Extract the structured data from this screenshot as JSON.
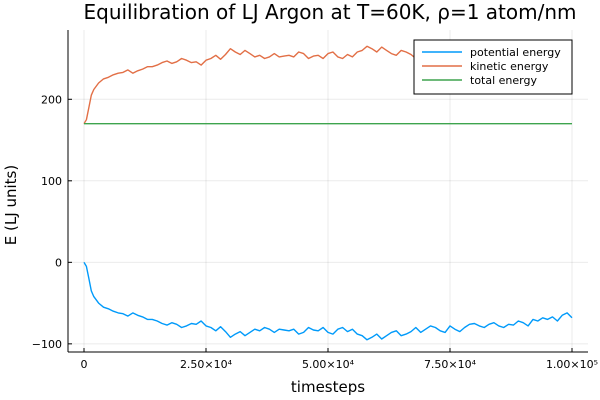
{
  "chart_data": {
    "type": "line",
    "title": "Equilibration of LJ Argon at T=60K, ρ=1 atom/nm",
    "xlabel": "timesteps",
    "ylabel": "E (LJ units)",
    "xlim": [
      0,
      100000
    ],
    "ylim": [
      -110,
      285
    ],
    "x_ticks": [
      {
        "value": 0,
        "label": "0"
      },
      {
        "value": 25000,
        "label": "2.50×10⁴"
      },
      {
        "value": 50000,
        "label": "5.00×10⁴"
      },
      {
        "value": 75000,
        "label": "7.50×10⁴"
      },
      {
        "value": 100000,
        "label": "1.00×10⁵"
      }
    ],
    "y_ticks": [
      {
        "value": -100,
        "label": "−100"
      },
      {
        "value": 0,
        "label": "0"
      },
      {
        "value": 100,
        "label": "100"
      },
      {
        "value": 200,
        "label": "200"
      }
    ],
    "grid": true,
    "legend_position": "top-right",
    "series": [
      {
        "name": "potential energy",
        "color": "#009AFA",
        "x": [
          0,
          500,
          1000,
          1500,
          2000,
          3000,
          4000,
          5000,
          6000,
          7000,
          8000,
          9000,
          10000,
          11000,
          12000,
          13000,
          14000,
          15000,
          16000,
          17000,
          18000,
          19000,
          20000,
          21000,
          22000,
          23000,
          24000,
          25000,
          26000,
          27000,
          28000,
          29000,
          30000,
          31000,
          32000,
          33000,
          34000,
          35000,
          36000,
          37000,
          38000,
          39000,
          40000,
          41000,
          42000,
          43000,
          44000,
          45000,
          46000,
          47000,
          48000,
          49000,
          50000,
          51000,
          52000,
          53000,
          54000,
          55000,
          56000,
          57000,
          58000,
          59000,
          60000,
          61000,
          62000,
          63000,
          64000,
          65000,
          66000,
          67000,
          68000,
          69000,
          70000,
          71000,
          72000,
          73000,
          74000,
          75000,
          76000,
          77000,
          78000,
          79000,
          80000,
          81000,
          82000,
          83000,
          84000,
          85000,
          86000,
          87000,
          88000,
          89000,
          90000,
          91000,
          92000,
          93000,
          94000,
          95000,
          96000,
          97000,
          98000,
          99000,
          100000
        ],
        "y": [
          0,
          -5,
          -20,
          -35,
          -42,
          -50,
          -55,
          -57,
          -60,
          -62,
          -63,
          -66,
          -62,
          -65,
          -67,
          -70,
          -70,
          -72,
          -75,
          -77,
          -74,
          -76,
          -80,
          -78,
          -75,
          -76,
          -72,
          -78,
          -80,
          -84,
          -79,
          -85,
          -92,
          -88,
          -85,
          -90,
          -86,
          -82,
          -84,
          -80,
          -82,
          -86,
          -82,
          -83,
          -84,
          -82,
          -88,
          -86,
          -80,
          -83,
          -84,
          -80,
          -86,
          -88,
          -82,
          -80,
          -85,
          -82,
          -88,
          -90,
          -95,
          -92,
          -88,
          -94,
          -90,
          -86,
          -84,
          -90,
          -88,
          -85,
          -80,
          -86,
          -82,
          -78,
          -80,
          -84,
          -86,
          -78,
          -82,
          -85,
          -80,
          -76,
          -75,
          -78,
          -80,
          -76,
          -74,
          -78,
          -80,
          -76,
          -77,
          -72,
          -74,
          -78,
          -70,
          -72,
          -68,
          -70,
          -67,
          -72,
          -65,
          -62,
          -68
        ]
      },
      {
        "name": "kinetic energy",
        "color": "#E26F46",
        "x": [
          0,
          500,
          1000,
          1500,
          2000,
          3000,
          4000,
          5000,
          6000,
          7000,
          8000,
          9000,
          10000,
          11000,
          12000,
          13000,
          14000,
          15000,
          16000,
          17000,
          18000,
          19000,
          20000,
          21000,
          22000,
          23000,
          24000,
          25000,
          26000,
          27000,
          28000,
          29000,
          30000,
          31000,
          32000,
          33000,
          34000,
          35000,
          36000,
          37000,
          38000,
          39000,
          40000,
          41000,
          42000,
          43000,
          44000,
          45000,
          46000,
          47000,
          48000,
          49000,
          50000,
          51000,
          52000,
          53000,
          54000,
          55000,
          56000,
          57000,
          58000,
          59000,
          60000,
          61000,
          62000,
          63000,
          64000,
          65000,
          66000,
          67000,
          68000,
          69000,
          70000,
          71000,
          72000,
          73000,
          74000,
          75000,
          76000,
          77000,
          78000,
          79000,
          80000,
          81000,
          82000,
          83000,
          84000,
          85000,
          86000,
          87000,
          88000,
          89000,
          90000,
          91000,
          92000,
          93000,
          94000,
          95000,
          96000,
          97000,
          98000,
          99000,
          100000
        ],
        "y": [
          170,
          175,
          190,
          205,
          212,
          220,
          225,
          227,
          230,
          232,
          233,
          236,
          232,
          235,
          237,
          240,
          240,
          242,
          245,
          247,
          244,
          246,
          250,
          248,
          245,
          246,
          242,
          248,
          250,
          254,
          249,
          255,
          262,
          258,
          255,
          260,
          256,
          252,
          254,
          250,
          252,
          256,
          252,
          253,
          254,
          252,
          258,
          256,
          250,
          253,
          254,
          250,
          256,
          258,
          252,
          250,
          255,
          252,
          258,
          260,
          265,
          262,
          258,
          264,
          260,
          256,
          254,
          260,
          258,
          255,
          250,
          256,
          252,
          248,
          250,
          254,
          256,
          248,
          252,
          255,
          250,
          246,
          245,
          248,
          250,
          246,
          244,
          248,
          250,
          246,
          247,
          242,
          244,
          248,
          240,
          242,
          238,
          240,
          237,
          242,
          235,
          232,
          238
        ]
      },
      {
        "name": "total energy",
        "color": "#3EA44E",
        "x": [
          0,
          100000
        ],
        "y": [
          170,
          170
        ]
      }
    ]
  }
}
